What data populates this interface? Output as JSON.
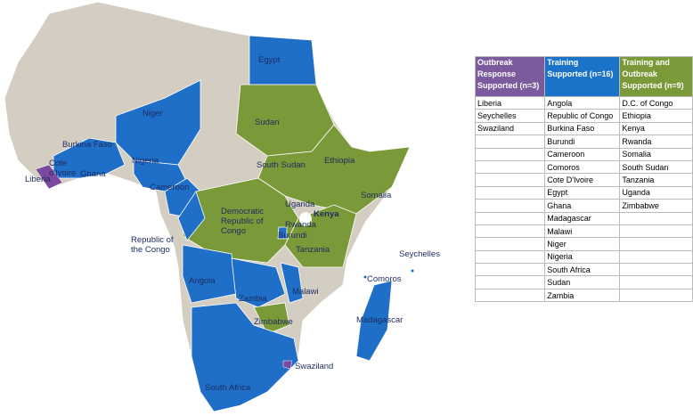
{
  "map": {
    "labels": [
      [
        "Egypt"
      ],
      [
        "Niger"
      ],
      [
        "Burkina Faso"
      ],
      [
        "Cote",
        "d'Ivoire"
      ],
      [
        "Liberia"
      ],
      [
        "Ghana"
      ],
      [
        "Nigeria"
      ],
      [
        "Cameroon"
      ],
      [
        "Sudan"
      ],
      [
        "South Sudan"
      ],
      [
        "Ethiopia"
      ],
      [
        "Somalia"
      ],
      [
        "Uganda"
      ],
      [
        "Kenya"
      ],
      [
        "Rwanda"
      ],
      [
        "Burundi"
      ],
      [
        "Democratic",
        "Republic of",
        "Congo"
      ],
      [
        "Republic of",
        "the Congo"
      ],
      [
        "Tanzania"
      ],
      [
        "Seychelles"
      ],
      [
        "Comoros"
      ],
      [
        "Angola"
      ],
      [
        "Zambia"
      ],
      [
        "Malawi"
      ],
      [
        "Zimbabwe"
      ],
      [
        "Madagascar"
      ],
      [
        "Swaziland"
      ],
      [
        "South Africa"
      ]
    ]
  },
  "table": {
    "columns": [
      {
        "header": [
          "Outbreak",
          "Response",
          "Supported (n=3)"
        ],
        "items": [
          "Liberia",
          "Seychelles",
          "Swaziland"
        ]
      },
      {
        "header": [
          "Training",
          "Supported (n=16)"
        ],
        "items": [
          "Angola",
          "Republic of Congo",
          "Burkina Faso",
          "Burundi",
          "Cameroon",
          "Comoros",
          "Cote D'Ivoire",
          "Egypt",
          "Ghana",
          "Madagascar",
          "Malawi",
          "Niger",
          "Nigeria",
          "South Africa",
          "Sudan",
          "Zambia"
        ]
      },
      {
        "header": [
          "Training and",
          "Outbreak",
          "Supported (n=9)"
        ],
        "items": [
          "D.C. of Congo",
          "Ethiopia",
          "Kenya",
          "Rwanda",
          "Somalia",
          "South Sudan",
          "Tanzania",
          "Uganda",
          "Zimbabwe"
        ]
      }
    ]
  }
}
